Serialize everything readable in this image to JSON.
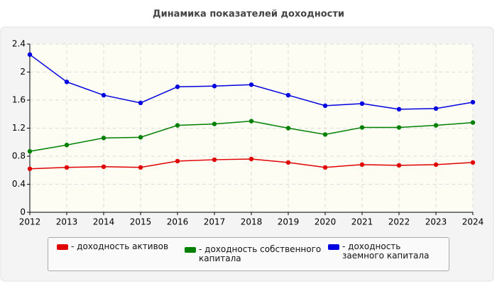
{
  "chart_data": {
    "type": "line",
    "title": "Динамика показателей доходности",
    "x": [
      2012,
      2013,
      2014,
      2015,
      2016,
      2017,
      2018,
      2019,
      2020,
      2021,
      2022,
      2023,
      2024
    ],
    "xlim": [
      2012,
      2024
    ],
    "xticks": [
      2012,
      2013,
      2014,
      2015,
      2016,
      2017,
      2018,
      2019,
      2020,
      2021,
      2022,
      2023,
      2024
    ],
    "ylim": [
      0,
      2.4
    ],
    "yticks": [
      0,
      0.4,
      0.8,
      1.2,
      1.6,
      2,
      2.4
    ],
    "grid": true,
    "legend": "bottom",
    "series": [
      {
        "name": "- доходность активов",
        "color": "#e00000",
        "values": [
          0.62,
          0.64,
          0.65,
          0.64,
          0.73,
          0.75,
          0.76,
          0.71,
          0.64,
          0.68,
          0.67,
          0.68,
          0.71
        ]
      },
      {
        "name": "- доходность собственного капитала",
        "color": "#008000",
        "values": [
          0.87,
          0.96,
          1.06,
          1.07,
          1.24,
          1.26,
          1.3,
          1.2,
          1.11,
          1.21,
          1.21,
          1.24,
          1.28
        ]
      },
      {
        "name": "- доходность заемного капитала",
        "color": "#0000e0",
        "values": [
          2.25,
          1.86,
          1.67,
          1.56,
          1.79,
          1.8,
          1.82,
          1.67,
          1.52,
          1.55,
          1.47,
          1.48,
          1.57
        ]
      }
    ]
  }
}
